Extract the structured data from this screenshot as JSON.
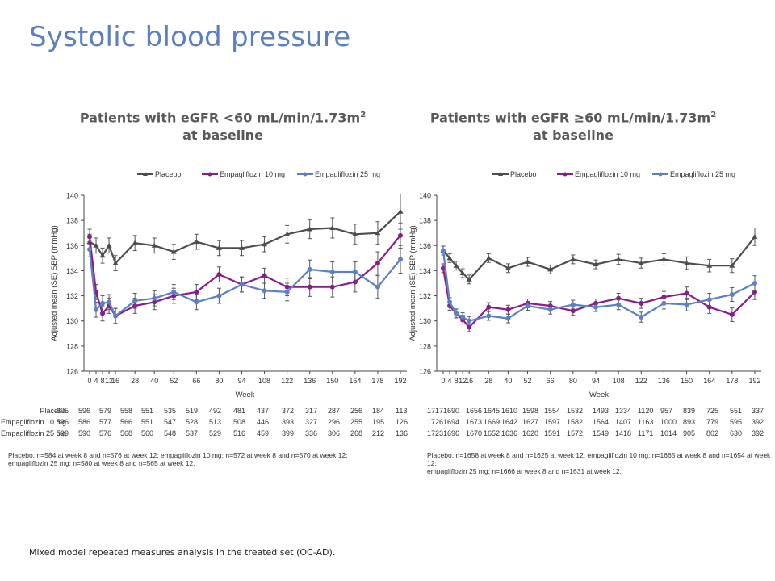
{
  "slide": {
    "title": "Systolic blood pressure",
    "footer": "Mixed model repeated measures analysis in the treated set (OC-AD)."
  },
  "panels": [
    {
      "title_line1": "Patients with eGFR <60 mL/min/1.73m",
      "title_sup": "2",
      "title_line2": "at baseline",
      "footnote_line1": "Placebo: n=584 at week 8 and n=576 at week 12; empagliflozin 10 mg: n=572 at week 8 and n=570 at week 12;",
      "footnote_line2": "empagliflozin 25 mg: n=580 at week 8 and n=565 at week 12.",
      "n_table": {
        "rows": [
          {
            "label": "Placebo",
            "values": [
              "605",
              "596",
              "579",
              "558",
              "551",
              "535",
              "519",
              "492",
              "481",
              "437",
              "372",
              "317",
              "287",
              "256",
              "184",
              "113"
            ]
          },
          {
            "label": "Empagliflozin 10 mg",
            "values": [
              "596",
              "586",
              "577",
              "566",
              "551",
              "547",
              "528",
              "513",
              "508",
              "446",
              "393",
              "327",
              "296",
              "255",
              "195",
              "126"
            ]
          },
          {
            "label": "Empagliflozin 25 mg",
            "values": [
              "599",
              "590",
              "576",
              "568",
              "560",
              "548",
              "537",
              "529",
              "516",
              "459",
              "399",
              "336",
              "306",
              "268",
              "212",
              "136"
            ]
          }
        ]
      }
    },
    {
      "title_line1": "Patients with eGFR ≥60 mL/min/1.73m",
      "title_sup": "2",
      "title_line2": "at baseline",
      "footnote_line1": "Placebo: n=1658 at week 8 and n=1625 at week 12; empagliflozin 10 mg: n=1665 at week 8 and n=1654 at week 12;",
      "footnote_line2": "empagliflozin 25 mg: n=1666 at week 8 and n=1631 at week 12.",
      "n_table": {
        "rows": [
          {
            "label": "Placebo",
            "values": [
              "1717",
              "1690",
              "1656",
              "1645",
              "1610",
              "1598",
              "1554",
              "1532",
              "1493",
              "1334",
              "1120",
              "957",
              "839",
              "725",
              "551",
              "337"
            ]
          },
          {
            "label": "Empagliflozin 10 mg",
            "values": [
              "1726",
              "1694",
              "1673",
              "1669",
              "1642",
              "1627",
              "1597",
              "1582",
              "1564",
              "1407",
              "1163",
              "1000",
              "893",
              "779",
              "595",
              "392"
            ]
          },
          {
            "label": "Empagliflozin 25 mg",
            "values": [
              "1723",
              "1696",
              "1670",
              "1652",
              "1636",
              "1620",
              "1591",
              "1572",
              "1549",
              "1418",
              "1171",
              "1014",
              "905",
              "802",
              "630",
              "392"
            ]
          }
        ]
      }
    }
  ],
  "colors": {
    "placebo": "#4d4d4d",
    "empa10": "#8b1a8b",
    "empa25": "#5b7fc8",
    "title": "#5b7fc0"
  },
  "chart_data": [
    {
      "type": "line",
      "title": "Patients with eGFR <60 mL/min/1.73m2 at baseline",
      "xlabel": "Week",
      "ylabel": "Adjusted mean (SE) SBP (mmHg)",
      "ylim": [
        126,
        140
      ],
      "yticks": [
        126,
        128,
        130,
        132,
        134,
        136,
        138,
        140
      ],
      "x": [
        0,
        4,
        8,
        12,
        16,
        28,
        40,
        52,
        66,
        80,
        94,
        108,
        122,
        136,
        150,
        164,
        178,
        192
      ],
      "xticks": [
        "0",
        "4",
        "8",
        "12",
        "16",
        "28",
        "40",
        "52",
        "66",
        "80",
        "94",
        "108",
        "122",
        "136",
        "150",
        "164",
        "178",
        "192"
      ],
      "legend": "top-center",
      "grid": false,
      "series": [
        {
          "name": "Placebo",
          "marker": "triangle",
          "color": "#4d4d4d",
          "values": [
            136.3,
            136.0,
            135.2,
            136.0,
            134.6,
            136.2,
            136.0,
            135.5,
            136.3,
            135.8,
            135.8,
            136.1,
            136.9,
            137.3,
            137.4,
            136.9,
            137.0,
            138.7
          ],
          "se": [
            0.6,
            0.6,
            0.6,
            0.6,
            0.6,
            0.6,
            0.6,
            0.6,
            0.6,
            0.6,
            0.6,
            0.6,
            0.7,
            0.75,
            0.8,
            0.8,
            0.9,
            1.4
          ]
        },
        {
          "name": "Empagliflozin 10 mg",
          "marker": "circle",
          "color": "#8b1a8b",
          "values": [
            136.7,
            132.3,
            130.6,
            131.2,
            130.4,
            131.2,
            131.5,
            132.0,
            132.3,
            133.7,
            132.9,
            133.6,
            132.7,
            132.7,
            132.7,
            133.1,
            134.6,
            136.8
          ],
          "se": [
            0.6,
            0.6,
            0.6,
            0.6,
            0.6,
            0.6,
            0.6,
            0.6,
            0.6,
            0.6,
            0.6,
            0.6,
            0.7,
            0.75,
            0.8,
            0.8,
            0.9,
            1.0
          ]
        },
        {
          "name": "Empagliflozin 25 mg",
          "marker": "circle",
          "color": "#5b7fc8",
          "values": [
            135.7,
            130.9,
            131.4,
            131.5,
            130.4,
            131.6,
            131.8,
            132.3,
            131.5,
            132.0,
            132.9,
            132.4,
            132.3,
            134.1,
            133.9,
            133.9,
            132.7,
            134.9
          ],
          "se": [
            0.6,
            0.6,
            0.6,
            0.6,
            0.6,
            0.6,
            0.6,
            0.6,
            0.6,
            0.6,
            0.6,
            0.6,
            0.7,
            0.75,
            0.8,
            0.8,
            0.9,
            1.1
          ]
        }
      ]
    },
    {
      "type": "line",
      "title": "Patients with eGFR ≥60 mL/min/1.73m2 at baseline",
      "xlabel": "Week",
      "ylabel": "Adjusted mean (SE) SBP (mmHg)",
      "ylim": [
        126,
        140
      ],
      "yticks": [
        126,
        128,
        130,
        132,
        134,
        136,
        138,
        140
      ],
      "x": [
        0,
        4,
        8,
        12,
        16,
        28,
        40,
        52,
        66,
        80,
        94,
        108,
        122,
        136,
        150,
        164,
        178,
        192
      ],
      "xticks": [
        "0",
        "4",
        "8",
        "12",
        "16",
        "28",
        "40",
        "52",
        "66",
        "80",
        "94",
        "108",
        "122",
        "136",
        "150",
        "164",
        "178",
        "192"
      ],
      "legend": "top-center",
      "grid": false,
      "series": [
        {
          "name": "Placebo",
          "marker": "triangle",
          "color": "#4d4d4d",
          "values": [
            135.6,
            135.0,
            134.4,
            133.8,
            133.3,
            135.0,
            134.2,
            134.7,
            134.1,
            134.9,
            134.5,
            134.9,
            134.6,
            134.9,
            134.6,
            134.4,
            134.4,
            136.7
          ],
          "se": [
            0.35,
            0.35,
            0.35,
            0.35,
            0.35,
            0.35,
            0.35,
            0.35,
            0.35,
            0.35,
            0.35,
            0.4,
            0.4,
            0.45,
            0.5,
            0.5,
            0.55,
            0.7
          ]
        },
        {
          "name": "Empagliflozin 10 mg",
          "marker": "circle",
          "color": "#8b1a8b",
          "values": [
            134.2,
            131.2,
            130.6,
            130.1,
            129.5,
            131.1,
            130.9,
            131.4,
            131.2,
            130.8,
            131.4,
            131.8,
            131.4,
            131.9,
            132.2,
            131.1,
            130.5,
            132.3
          ],
          "se": [
            0.35,
            0.35,
            0.35,
            0.35,
            0.35,
            0.35,
            0.35,
            0.35,
            0.35,
            0.35,
            0.35,
            0.4,
            0.4,
            0.45,
            0.5,
            0.5,
            0.55,
            0.6
          ]
        },
        {
          "name": "Empagliflozin 25 mg",
          "marker": "circle",
          "color": "#5b7fc8",
          "values": [
            135.6,
            131.5,
            130.6,
            130.3,
            130.0,
            130.4,
            130.2,
            131.2,
            130.9,
            131.3,
            131.1,
            131.3,
            130.3,
            131.4,
            131.3,
            131.7,
            132.1,
            133.0
          ],
          "se": [
            0.35,
            0.35,
            0.35,
            0.35,
            0.35,
            0.35,
            0.35,
            0.35,
            0.35,
            0.35,
            0.35,
            0.4,
            0.4,
            0.45,
            0.5,
            0.5,
            0.55,
            0.6
          ]
        }
      ]
    }
  ]
}
